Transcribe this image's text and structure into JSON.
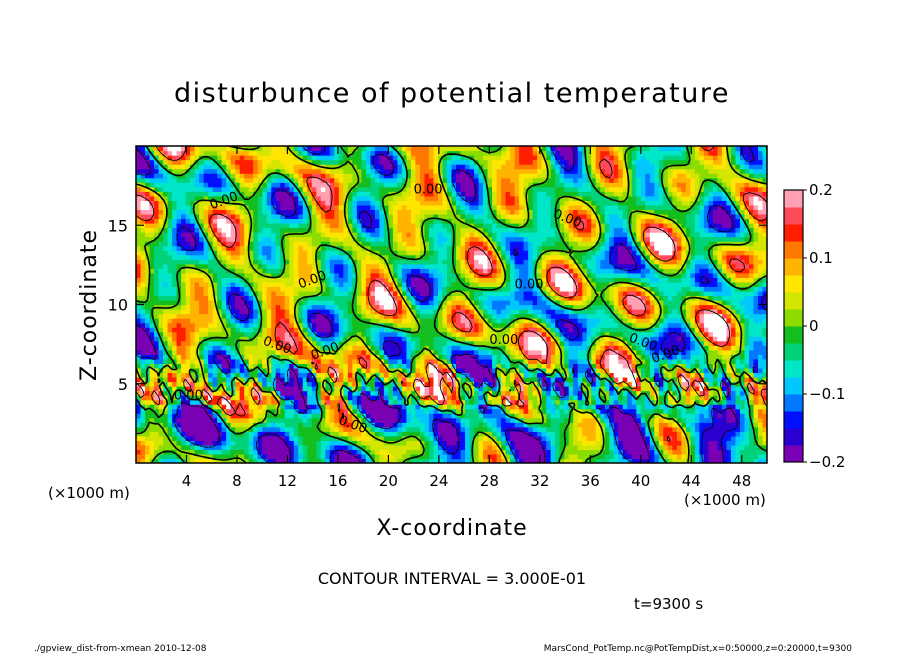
{
  "chart_data": {
    "type": "heatmap",
    "title": "disturbunce of potential temperature",
    "xlabel": "X-coordinate",
    "ylabel": "Z-coordinate",
    "x_unit_label_left": "(×1000 m)",
    "x_unit_label_right": "(×1000 m)",
    "xlim": [
      0,
      50
    ],
    "ylim": [
      0,
      20
    ],
    "x_ticks": [
      4,
      8,
      12,
      16,
      20,
      24,
      28,
      32,
      36,
      40,
      44,
      48
    ],
    "y_ticks": [
      5,
      10,
      15
    ],
    "x_tick_labels": [
      "4",
      "8",
      "12",
      "16",
      "20",
      "24",
      "28",
      "32",
      "36",
      "40",
      "44",
      "48"
    ],
    "y_tick_labels": [
      "5",
      "10",
      "15"
    ],
    "colorbar": {
      "range": [
        -0.2,
        0.2
      ],
      "tick_values": [
        0.2,
        0.1,
        0,
        -0.1,
        -0.2
      ],
      "tick_labels": [
        "0.2",
        "0.1",
        "0",
        "−0.1",
        "−0.2"
      ],
      "colors": [
        "#7a00b4",
        "#2a00d0",
        "#0010ff",
        "#0078ff",
        "#00c8ff",
        "#00e6c8",
        "#00d27a",
        "#14be1e",
        "#8cdc00",
        "#d2e600",
        "#ffe600",
        "#ffb400",
        "#ff7800",
        "#ff1e00",
        "#ff4a5a",
        "#ffa0b4"
      ]
    },
    "contour_labels": [
      "0.00",
      "0.00",
      "0.00",
      "0.00",
      "0.00",
      "0.00",
      "0.00",
      "0.00",
      "0.00",
      "0.00",
      "0.00",
      "0.00"
    ],
    "grid": false,
    "legend": "colorbar-right"
  },
  "annotations": {
    "contour_interval": "CONTOUR INTERVAL = 3.000E-01",
    "time": "t=9300 s",
    "footer_left": "./gpview_dist-from-xmean  2010-12-08",
    "footer_right": "MarsCond_PotTemp.nc@PotTempDist,x=0:50000,z=0:20000,t=9300"
  },
  "colors": {
    "background": "#ffffff",
    "axes": "#000000",
    "high_value": "#ffffff",
    "positive": "#ff1e00",
    "neutral": "#14be1e",
    "negative": "#0010ff"
  }
}
